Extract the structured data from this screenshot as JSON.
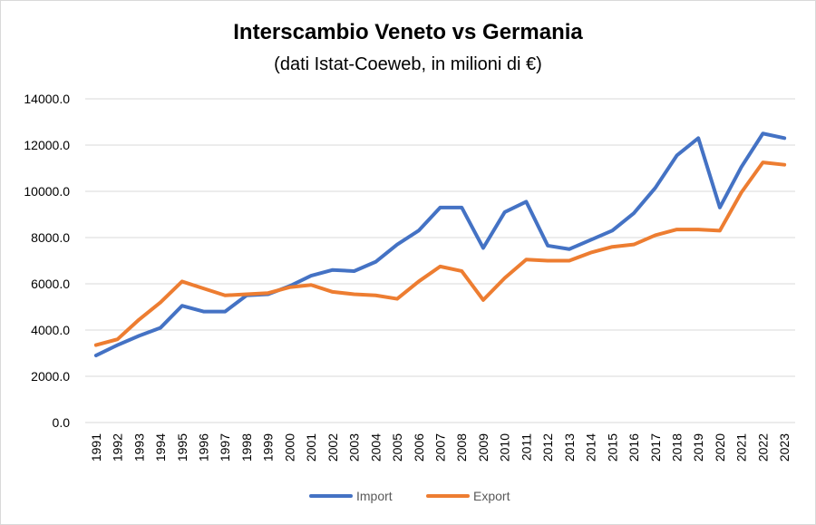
{
  "chart_data": {
    "type": "line",
    "title": "Interscambio Veneto vs Germania",
    "subtitle": "(dati Istat-Coeweb, in milioni di €)",
    "xlabel": "",
    "ylabel": "",
    "ylim": [
      0,
      14000
    ],
    "yticks": [
      "0.0",
      "2000.0",
      "4000.0",
      "6000.0",
      "8000.0",
      "10000.0",
      "12000.0",
      "14000.0"
    ],
    "categories": [
      "1991",
      "1992",
      "1993",
      "1994",
      "1995",
      "1996",
      "1997",
      "1998",
      "1999",
      "2000",
      "2001",
      "2002",
      "2003",
      "2004",
      "2005",
      "2006",
      "2007",
      "2008",
      "2009",
      "2010",
      "2011",
      "2012",
      "2013",
      "2014",
      "2015",
      "2016",
      "2017",
      "2018",
      "2019",
      "2020",
      "2021",
      "2022",
      "2023"
    ],
    "series": [
      {
        "name": "Import",
        "color": "#4472C4",
        "values": [
          2900,
          3350,
          3750,
          4100,
          5050,
          4800,
          4800,
          5500,
          5550,
          5900,
          6350,
          6600,
          6550,
          6950,
          7700,
          8300,
          9300,
          9300,
          7550,
          9100,
          9550,
          7650,
          7500,
          7900,
          8300,
          9050,
          10150,
          11550,
          12300,
          9300,
          11050,
          12500,
          12300
        ]
      },
      {
        "name": "Export",
        "color": "#ED7D31",
        "values": [
          3350,
          3600,
          4450,
          5200,
          6100,
          5800,
          5500,
          5550,
          5600,
          5850,
          5950,
          5650,
          5550,
          5500,
          5350,
          6100,
          6750,
          6550,
          5300,
          6250,
          7050,
          7000,
          7000,
          7350,
          7600,
          7700,
          8100,
          8350,
          8350,
          8300,
          9950,
          11250,
          11150
        ]
      }
    ],
    "grid": true,
    "legend_position": "bottom"
  }
}
